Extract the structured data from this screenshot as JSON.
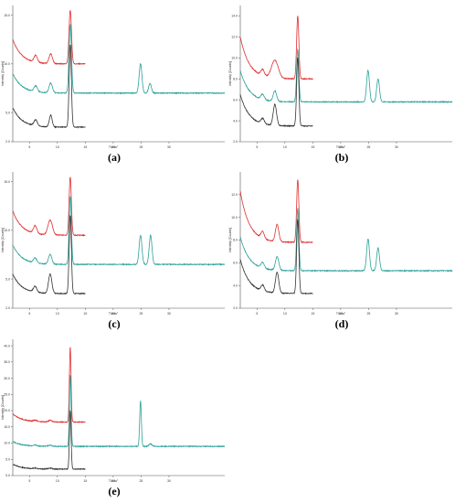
{
  "figure": {
    "panels": [
      {
        "id": "a",
        "caption": "(a)"
      },
      {
        "id": "b",
        "caption": "(b)"
      },
      {
        "id": "c",
        "caption": "(c)"
      },
      {
        "id": "d",
        "caption": "(d)"
      },
      {
        "id": "e",
        "caption": "(e)"
      }
    ]
  },
  "chart_data": [
    {
      "type": "line",
      "panel": "a",
      "xlabel": "Theta°",
      "ylabel": "Intensity [Counts]",
      "xlim": [
        2,
        40
      ],
      "ylim": [
        2.0,
        16.0
      ],
      "xticks": [
        5,
        10,
        15,
        20,
        25,
        30
      ],
      "yticks": [
        "2.0",
        "5.0",
        "10.0",
        "15.0"
      ],
      "series": [
        {
          "color": "#e03030",
          "range": [
            2,
            15
          ],
          "base": 10.0,
          "decay": 2.5,
          "peaks": [
            [
              6.1,
              0.7,
              0.3
            ],
            [
              8.8,
              1.0,
              0.3
            ],
            [
              12.3,
              5.5,
              0.22
            ]
          ]
        },
        {
          "color": "#2aa198",
          "range": [
            2,
            40
          ],
          "base": 7.0,
          "decay": 2.0,
          "peaks": [
            [
              6.1,
              0.6,
              0.3
            ],
            [
              8.8,
              1.0,
              0.3
            ],
            [
              12.3,
              7.0,
              0.22
            ],
            [
              24.9,
              3.0,
              0.25
            ],
            [
              26.6,
              1.0,
              0.25
            ]
          ]
        },
        {
          "color": "#333333",
          "range": [
            2,
            15
          ],
          "base": 3.5,
          "decay": 2.0,
          "peaks": [
            [
              6.1,
              0.6,
              0.3
            ],
            [
              8.8,
              1.2,
              0.25
            ],
            [
              12.3,
              8.5,
              0.2
            ]
          ]
        }
      ]
    },
    {
      "type": "line",
      "panel": "b",
      "xlabel": "Theta°",
      "ylabel": "Intensity [Counts]",
      "xlim": [
        2,
        40
      ],
      "ylim": [
        2.0,
        15.0
      ],
      "xticks": [
        5,
        10,
        15,
        20,
        25,
        30
      ],
      "yticks": [
        "2.0",
        "4.0",
        "6.0",
        "8.0",
        "10.0",
        "12.0",
        "14.0"
      ],
      "series": [
        {
          "color": "#e03030",
          "range": [
            2,
            15
          ],
          "base": 8.0,
          "decay": 4.0,
          "peaks": [
            [
              6.0,
              0.6,
              0.3
            ],
            [
              8.2,
              1.7,
              0.6
            ],
            [
              12.3,
              6.0,
              0.2
            ]
          ]
        },
        {
          "color": "#2aa198",
          "range": [
            2,
            40
          ],
          "base": 5.8,
          "decay": 3.0,
          "peaks": [
            [
              6.0,
              0.5,
              0.3
            ],
            [
              8.2,
              1.0,
              0.3
            ],
            [
              12.3,
              5.0,
              0.2
            ],
            [
              24.9,
              3.0,
              0.25
            ],
            [
              26.7,
              2.2,
              0.25
            ]
          ]
        },
        {
          "color": "#333333",
          "range": [
            2,
            15
          ],
          "base": 3.5,
          "decay": 3.0,
          "peaks": [
            [
              6.0,
              0.5,
              0.3
            ],
            [
              8.2,
              2.0,
              0.3
            ],
            [
              12.3,
              6.5,
              0.2
            ]
          ]
        }
      ]
    },
    {
      "type": "line",
      "panel": "c",
      "xlabel": "Theta°",
      "ylabel": "Intensity [Counts]",
      "xlim": [
        2,
        40
      ],
      "ylim": [
        2.0,
        16.0
      ],
      "xticks": [
        5,
        10,
        15,
        20,
        25,
        30
      ],
      "yticks": [
        "2.0",
        "5.0",
        "10.0",
        "15.0"
      ],
      "series": [
        {
          "color": "#e03030",
          "range": [
            2,
            15
          ],
          "base": 9.5,
          "decay": 2.5,
          "peaks": [
            [
              6.0,
              0.8,
              0.3
            ],
            [
              8.7,
              1.5,
              0.4
            ],
            [
              12.3,
              6.0,
              0.2
            ]
          ]
        },
        {
          "color": "#2aa198",
          "range": [
            2,
            40
          ],
          "base": 6.5,
          "decay": 2.0,
          "peaks": [
            [
              6.0,
              0.5,
              0.3
            ],
            [
              8.7,
              1.0,
              0.3
            ],
            [
              12.3,
              7.0,
              0.2
            ],
            [
              24.9,
              3.0,
              0.25
            ],
            [
              26.7,
              3.0,
              0.25
            ]
          ]
        },
        {
          "color": "#333333",
          "range": [
            2,
            15
          ],
          "base": 3.5,
          "decay": 2.0,
          "peaks": [
            [
              6.0,
              0.6,
              0.3
            ],
            [
              8.7,
              2.0,
              0.3
            ],
            [
              12.3,
              8.0,
              0.2
            ]
          ]
        }
      ]
    },
    {
      "type": "line",
      "panel": "d",
      "xlabel": "Theta°",
      "ylabel": "Intensity [Counts]",
      "xlim": [
        2,
        40
      ],
      "ylim": [
        2.0,
        14.0
      ],
      "xticks": [
        5,
        10,
        15,
        20,
        25,
        30
      ],
      "yticks": [
        "2.0",
        "4.0",
        "6.0",
        "8.0",
        "10.0",
        "12.0"
      ],
      "series": [
        {
          "color": "#e03030",
          "range": [
            2,
            15
          ],
          "base": 7.8,
          "decay": 4.5,
          "peaks": [
            [
              6.0,
              0.6,
              0.3
            ],
            [
              8.6,
              1.5,
              0.3
            ],
            [
              12.3,
              5.5,
              0.2
            ]
          ]
        },
        {
          "color": "#2aa198",
          "range": [
            2,
            40
          ],
          "base": 5.3,
          "decay": 3.0,
          "peaks": [
            [
              6.0,
              0.5,
              0.3
            ],
            [
              8.6,
              1.2,
              0.3
            ],
            [
              12.3,
              5.5,
              0.2
            ],
            [
              24.9,
              2.8,
              0.25
            ],
            [
              26.7,
              2.0,
              0.25
            ]
          ]
        },
        {
          "color": "#333333",
          "range": [
            2,
            15
          ],
          "base": 3.3,
          "decay": 3.0,
          "peaks": [
            [
              6.0,
              0.5,
              0.3
            ],
            [
              8.6,
              1.8,
              0.3
            ],
            [
              12.3,
              6.5,
              0.2
            ]
          ]
        }
      ]
    },
    {
      "type": "line",
      "panel": "e",
      "xlabel": "Theta°",
      "ylabel": "Intensity [Counts]",
      "xlim": [
        2,
        40
      ],
      "ylim": [
        0,
        42
      ],
      "xticks": [
        5,
        10,
        15,
        20,
        25,
        30
      ],
      "yticks": [
        "0.0",
        "5.0",
        "10.0",
        "15.0",
        "20.0",
        "25.0",
        "30.0",
        "35.0",
        "40.0"
      ],
      "series": [
        {
          "color": "#e03030",
          "range": [
            2,
            15
          ],
          "base": 16.5,
          "decay": 2.5,
          "peaks": [
            [
              6.0,
              0.4,
              0.3
            ],
            [
              8.7,
              0.5,
              0.3
            ],
            [
              12.3,
              23.0,
              0.15
            ]
          ]
        },
        {
          "color": "#2aa198",
          "range": [
            2,
            40
          ],
          "base": 9.0,
          "decay": 1.5,
          "peaks": [
            [
              6.0,
              0.3,
              0.3
            ],
            [
              8.7,
              0.3,
              0.3
            ],
            [
              12.3,
              22.0,
              0.15
            ],
            [
              24.9,
              14.0,
              0.15
            ],
            [
              26.7,
              0.8,
              0.25
            ]
          ]
        },
        {
          "color": "#333333",
          "range": [
            2,
            15
          ],
          "base": 2.0,
          "decay": 1.5,
          "peaks": [
            [
              6.0,
              0.2,
              0.3
            ],
            [
              8.7,
              0.3,
              0.3
            ],
            [
              12.3,
              18.0,
              0.15
            ]
          ]
        }
      ]
    }
  ]
}
